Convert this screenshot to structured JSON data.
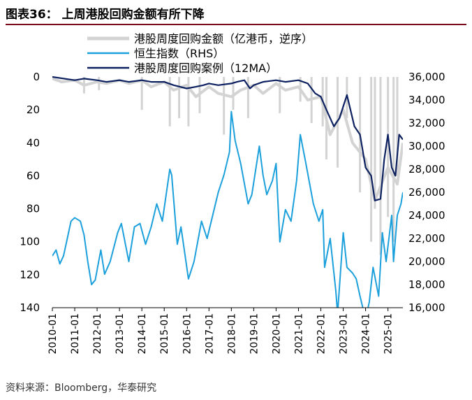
{
  "title": "图表36： 上周港股回购金额有所下降",
  "source": "资料来源：Bloomberg，华泰研究",
  "chart_data": {
    "type": "line",
    "title": "图表36： 上周港股回购金额有所下降",
    "left_axis": {
      "ylim": [
        140,
        0
      ],
      "inverted": true,
      "ticks": [
        "0",
        "20",
        "40",
        "60",
        "80",
        "100",
        "120",
        "140"
      ]
    },
    "right_axis": {
      "ylim": [
        16000,
        36000
      ],
      "ticks": [
        "16,000",
        "18,000",
        "20,000",
        "22,000",
        "24,000",
        "26,000",
        "28,000",
        "30,000",
        "32,000",
        "34,000",
        "36,000"
      ]
    },
    "x_ticks": [
      "2010-01",
      "2011-01",
      "2012-01",
      "2013-01",
      "2014-01",
      "2015-01",
      "2016-01",
      "2017-01",
      "2018-01",
      "2019-01",
      "2020-01",
      "2021-01",
      "2022-01",
      "2023-01",
      "2024-01",
      "2025-01"
    ],
    "x_range": [
      "2010-01",
      "2025-09"
    ],
    "grid": false,
    "legend_position": "top",
    "series": [
      {
        "name": "港股周度回购金额（亿港币，逆序）",
        "axis": "left",
        "color": "#d3d3d3",
        "points": [
          [
            "2010-01",
            1
          ],
          [
            "2010-06",
            3
          ],
          [
            "2011-01",
            2
          ],
          [
            "2011-06",
            5
          ],
          [
            "2012-01",
            3
          ],
          [
            "2012-06",
            4
          ],
          [
            "2013-01",
            2
          ],
          [
            "2013-06",
            4
          ],
          [
            "2014-01",
            2
          ],
          [
            "2014-06",
            6
          ],
          [
            "2015-01",
            3
          ],
          [
            "2015-06",
            8
          ],
          [
            "2016-01",
            5
          ],
          [
            "2016-06",
            12
          ],
          [
            "2017-01",
            6
          ],
          [
            "2017-06",
            10
          ],
          [
            "2018-01",
            12
          ],
          [
            "2018-06",
            8
          ],
          [
            "2019-01",
            5
          ],
          [
            "2019-06",
            10
          ],
          [
            "2020-01",
            4
          ],
          [
            "2020-06",
            8
          ],
          [
            "2021-01",
            6
          ],
          [
            "2021-06",
            14
          ],
          [
            "2022-01",
            12
          ],
          [
            "2022-06",
            35
          ],
          [
            "2023-01",
            20
          ],
          [
            "2023-06",
            40
          ],
          [
            "2024-01",
            50
          ],
          [
            "2024-06",
            75
          ],
          [
            "2025-01",
            55
          ],
          [
            "2025-06",
            65
          ],
          [
            "2025-09",
            40
          ]
        ],
        "spikes": [
          [
            "2011-06",
            10
          ],
          [
            "2012-02",
            8
          ],
          [
            "2014-01",
            20
          ],
          [
            "2015-04",
            30
          ],
          [
            "2015-09",
            25
          ],
          [
            "2016-02",
            30
          ],
          [
            "2016-08",
            22
          ],
          [
            "2017-09",
            35
          ],
          [
            "2018-02",
            20
          ],
          [
            "2018-10",
            25
          ],
          [
            "2020-03",
            22
          ],
          [
            "2021-02",
            15
          ],
          [
            "2021-08",
            28
          ],
          [
            "2022-02",
            30
          ],
          [
            "2022-04",
            50
          ],
          [
            "2022-10",
            55
          ],
          [
            "2023-03",
            25
          ],
          [
            "2023-10",
            70
          ],
          [
            "2024-04",
            100
          ],
          [
            "2024-06",
            80
          ],
          [
            "2024-09",
            108
          ],
          [
            "2025-01",
            85
          ],
          [
            "2025-04",
            100
          ],
          [
            "2025-06",
            60
          ]
        ]
      },
      {
        "name": "恒生指数（RHS）",
        "axis": "right",
        "color": "#1ca0dc",
        "points": [
          [
            "2010-01",
            20500
          ],
          [
            "2010-03",
            21000
          ],
          [
            "2010-05",
            19800
          ],
          [
            "2010-07",
            20500
          ],
          [
            "2010-09",
            22000
          ],
          [
            "2010-11",
            23500
          ],
          [
            "2011-01",
            23800
          ],
          [
            "2011-04",
            23500
          ],
          [
            "2011-06",
            22300
          ],
          [
            "2011-08",
            20000
          ],
          [
            "2011-10",
            18000
          ],
          [
            "2011-12",
            18400
          ],
          [
            "2012-03",
            21000
          ],
          [
            "2012-05",
            18900
          ],
          [
            "2012-08",
            20000
          ],
          [
            "2012-12",
            22500
          ],
          [
            "2013-02",
            23300
          ],
          [
            "2013-06",
            20000
          ],
          [
            "2013-09",
            23000
          ],
          [
            "2013-12",
            23300
          ],
          [
            "2014-03",
            21500
          ],
          [
            "2014-06",
            23000
          ],
          [
            "2014-09",
            25000
          ],
          [
            "2014-12",
            23500
          ],
          [
            "2015-04",
            28000
          ],
          [
            "2015-05",
            27500
          ],
          [
            "2015-08",
            21500
          ],
          [
            "2015-10",
            23000
          ],
          [
            "2016-02",
            18500
          ],
          [
            "2016-05",
            20000
          ],
          [
            "2016-09",
            23500
          ],
          [
            "2016-12",
            22000
          ],
          [
            "2017-03",
            24000
          ],
          [
            "2017-06",
            26000
          ],
          [
            "2017-09",
            27500
          ],
          [
            "2017-12",
            29500
          ],
          [
            "2018-01",
            33000
          ],
          [
            "2018-03",
            30500
          ],
          [
            "2018-06",
            28500
          ],
          [
            "2018-10",
            25000
          ],
          [
            "2018-12",
            25800
          ],
          [
            "2019-04",
            30000
          ],
          [
            "2019-06",
            27500
          ],
          [
            "2019-08",
            25800
          ],
          [
            "2019-11",
            27000
          ],
          [
            "2020-01",
            28500
          ],
          [
            "2020-03",
            21700
          ],
          [
            "2020-06",
            24500
          ],
          [
            "2020-09",
            23500
          ],
          [
            "2020-12",
            27000
          ],
          [
            "2021-02",
            31000
          ],
          [
            "2021-05",
            28500
          ],
          [
            "2021-09",
            25000
          ],
          [
            "2021-12",
            23500
          ],
          [
            "2022-02",
            24500
          ],
          [
            "2022-03",
            19500
          ],
          [
            "2022-06",
            22000
          ],
          [
            "2022-09",
            17500
          ],
          [
            "2022-10",
            15500
          ],
          [
            "2023-01",
            22500
          ],
          [
            "2023-03",
            19500
          ],
          [
            "2023-06",
            19000
          ],
          [
            "2023-08",
            18500
          ],
          [
            "2023-10",
            17000
          ],
          [
            "2024-01",
            15000
          ],
          [
            "2024-03",
            16500
          ],
          [
            "2024-05",
            19500
          ],
          [
            "2024-08",
            17000
          ],
          [
            "2024-10",
            22500
          ],
          [
            "2024-12",
            20000
          ],
          [
            "2025-03",
            24000
          ],
          [
            "2025-04",
            20000
          ],
          [
            "2025-06",
            24000
          ],
          [
            "2025-08",
            25000
          ],
          [
            "2025-09",
            26000
          ]
        ]
      },
      {
        "name": "港股周度回购案例（12MA）",
        "axis": "left",
        "color": "#0d2160",
        "points": [
          [
            "2010-01",
            0
          ],
          [
            "2011-01",
            2
          ],
          [
            "2011-06",
            1
          ],
          [
            "2012-01",
            2
          ],
          [
            "2012-06",
            3
          ],
          [
            "2013-01",
            2
          ],
          [
            "2013-06",
            3
          ],
          [
            "2014-01",
            2
          ],
          [
            "2014-06",
            3
          ],
          [
            "2015-01",
            3
          ],
          [
            "2015-06",
            5
          ],
          [
            "2016-01",
            7
          ],
          [
            "2016-06",
            6
          ],
          [
            "2016-10",
            5
          ],
          [
            "2017-01",
            4
          ],
          [
            "2017-06",
            5
          ],
          [
            "2018-01",
            4
          ],
          [
            "2018-04",
            3
          ],
          [
            "2018-08",
            2
          ],
          [
            "2018-11",
            7
          ],
          [
            "2019-01",
            5
          ],
          [
            "2019-06",
            3
          ],
          [
            "2020-01",
            2
          ],
          [
            "2020-06",
            3
          ],
          [
            "2021-01",
            2
          ],
          [
            "2021-06",
            4
          ],
          [
            "2021-10",
            10
          ],
          [
            "2022-01",
            12
          ],
          [
            "2022-04",
            20
          ],
          [
            "2022-08",
            30
          ],
          [
            "2022-11",
            25
          ],
          [
            "2023-03",
            11
          ],
          [
            "2023-07",
            30
          ],
          [
            "2023-10",
            35
          ],
          [
            "2024-01",
            55
          ],
          [
            "2024-04",
            60
          ],
          [
            "2024-06",
            75
          ],
          [
            "2024-09",
            74
          ],
          [
            "2024-11",
            50
          ],
          [
            "2025-01",
            35
          ],
          [
            "2025-03",
            55
          ],
          [
            "2025-05",
            60
          ],
          [
            "2025-07",
            35
          ],
          [
            "2025-09",
            38
          ]
        ]
      }
    ]
  }
}
